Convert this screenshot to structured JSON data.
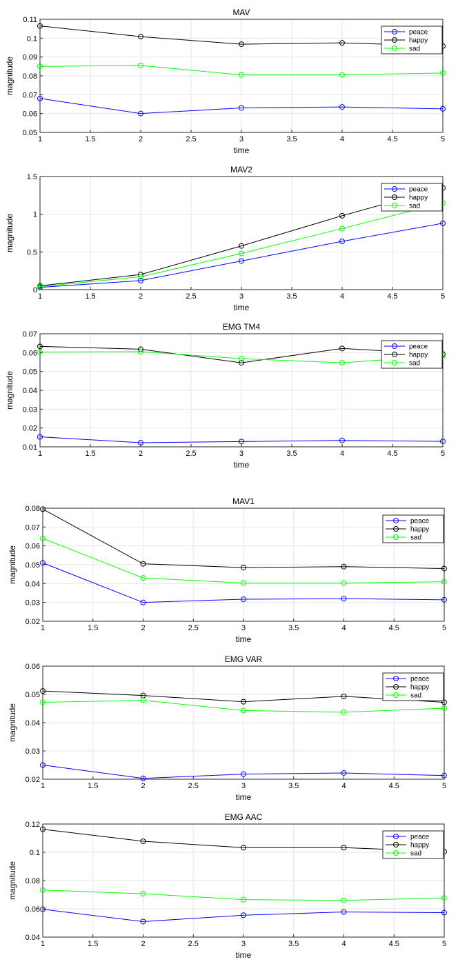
{
  "colors": {
    "peace": "#0000ff",
    "happy": "#000000",
    "sad": "#00ff00",
    "grid": "#e6e6e6",
    "axis": "#262626"
  },
  "chart_data": [
    {
      "type": "line",
      "title": "MAV",
      "xlabel": "time",
      "ylabel": "magnitude",
      "x": [
        1,
        2,
        3,
        4,
        5
      ],
      "xlim": [
        1,
        5
      ],
      "ylim": [
        0.05,
        0.11
      ],
      "xticks": [
        "1",
        "1.5",
        "2",
        "2.5",
        "3",
        "3.5",
        "4",
        "4.5",
        "5"
      ],
      "yticks": [
        "0.05",
        "0.06",
        "0.07",
        "0.08",
        "0.09",
        "0.1",
        "0.11"
      ],
      "grid": true,
      "legend": "top-right",
      "series": [
        {
          "name": "peace",
          "color": "#0000ff",
          "values": [
            0.068,
            0.06,
            0.063,
            0.0635,
            0.0625
          ]
        },
        {
          "name": "happy",
          "color": "#000000",
          "values": [
            0.1065,
            0.1008,
            0.0968,
            0.0975,
            0.0958
          ]
        },
        {
          "name": "sad",
          "color": "#00ff00",
          "values": [
            0.085,
            0.0855,
            0.0805,
            0.0805,
            0.0815
          ]
        }
      ]
    },
    {
      "type": "line",
      "title": "MAV2",
      "xlabel": "time",
      "ylabel": "magnitude",
      "x": [
        1,
        2,
        3,
        4,
        5
      ],
      "xlim": [
        1,
        5
      ],
      "ylim": [
        0,
        1.5
      ],
      "xticks": [
        "1",
        "1.5",
        "2",
        "2.5",
        "3",
        "3.5",
        "4",
        "4.5",
        "5"
      ],
      "yticks": [
        "0",
        "0.5",
        "1",
        "1.5"
      ],
      "grid": true,
      "legend": "top-right",
      "series": [
        {
          "name": "peace",
          "color": "#0000ff",
          "values": [
            0.03,
            0.12,
            0.38,
            0.64,
            0.88
          ]
        },
        {
          "name": "happy",
          "color": "#000000",
          "values": [
            0.05,
            0.2,
            0.58,
            0.98,
            1.35
          ]
        },
        {
          "name": "sad",
          "color": "#00ff00",
          "values": [
            0.04,
            0.17,
            0.48,
            0.81,
            1.15
          ]
        }
      ]
    },
    {
      "type": "line",
      "title": "EMG TM4",
      "xlabel": "time",
      "ylabel": "magnitude",
      "x": [
        1,
        2,
        3,
        4,
        5
      ],
      "xlim": [
        1,
        5
      ],
      "ylim": [
        0.01,
        0.07
      ],
      "xticks": [
        "1",
        "1.5",
        "2",
        "2.5",
        "3",
        "3.5",
        "4",
        "4.5",
        "5"
      ],
      "yticks": [
        "0.01",
        "0.02",
        "0.03",
        "0.04",
        "0.05",
        "0.06",
        "0.07"
      ],
      "grid": true,
      "legend": "top-right",
      "series": [
        {
          "name": "peace",
          "color": "#0000ff",
          "values": [
            0.0153,
            0.0122,
            0.0128,
            0.0134,
            0.0129
          ]
        },
        {
          "name": "happy",
          "color": "#000000",
          "values": [
            0.0633,
            0.0618,
            0.0546,
            0.0622,
            0.0592
          ]
        },
        {
          "name": "sad",
          "color": "#00ff00",
          "values": [
            0.0603,
            0.0605,
            0.0568,
            0.0546,
            0.0583
          ]
        }
      ]
    },
    {
      "type": "line",
      "title": "MAV1",
      "xlabel": "time",
      "ylabel": "magnitude",
      "x": [
        1,
        2,
        3,
        4,
        5
      ],
      "xlim": [
        1,
        5
      ],
      "ylim": [
        0.02,
        0.08
      ],
      "xticks": [
        "1",
        "1.5",
        "2",
        "2.5",
        "3",
        "3.5",
        "4",
        "4.5",
        "5"
      ],
      "yticks": [
        "0.02",
        "0.03",
        "0.04",
        "0.05",
        "0.06",
        "0.07",
        "0.08"
      ],
      "grid": true,
      "legend": "top-right",
      "series": [
        {
          "name": "peace",
          "color": "#0000ff",
          "values": [
            0.051,
            0.03,
            0.0317,
            0.032,
            0.0314
          ]
        },
        {
          "name": "happy",
          "color": "#000000",
          "values": [
            0.0795,
            0.0505,
            0.0485,
            0.049,
            0.048
          ]
        },
        {
          "name": "sad",
          "color": "#00ff00",
          "values": [
            0.064,
            0.043,
            0.0403,
            0.0403,
            0.041
          ]
        }
      ]
    },
    {
      "type": "line",
      "title": "EMG VAR",
      "xlabel": "time",
      "ylabel": "magnitude",
      "x": [
        1,
        2,
        3,
        4,
        5
      ],
      "xlim": [
        1,
        5
      ],
      "ylim": [
        0.02,
        0.06
      ],
      "xticks": [
        "1",
        "1.5",
        "2",
        "2.5",
        "3",
        "3.5",
        "4",
        "4.5",
        "5"
      ],
      "yticks": [
        "0.02",
        "0.03",
        "0.04",
        "0.05",
        "0.06"
      ],
      "grid": true,
      "legend": "top-right",
      "series": [
        {
          "name": "peace",
          "color": "#0000ff",
          "values": [
            0.025,
            0.0203,
            0.0218,
            0.0222,
            0.0213
          ]
        },
        {
          "name": "happy",
          "color": "#000000",
          "values": [
            0.0512,
            0.0496,
            0.0474,
            0.0493,
            0.0472
          ]
        },
        {
          "name": "sad",
          "color": "#00ff00",
          "values": [
            0.0472,
            0.0479,
            0.0443,
            0.0437,
            0.0451
          ]
        }
      ]
    },
    {
      "type": "line",
      "title": "EMG AAC",
      "xlabel": "time",
      "ylabel": "magnitude",
      "x": [
        1,
        2,
        3,
        4,
        5
      ],
      "xlim": [
        1,
        5
      ],
      "ylim": [
        0.04,
        0.12
      ],
      "xticks": [
        "1",
        "1.5",
        "2",
        "2.5",
        "3",
        "3.5",
        "4",
        "4.5",
        "5"
      ],
      "yticks": [
        "0.04",
        "0.06",
        "0.08",
        "0.1",
        "0.12"
      ],
      "grid": true,
      "legend": "top-right",
      "series": [
        {
          "name": "peace",
          "color": "#0000ff",
          "values": [
            0.0597,
            0.051,
            0.0555,
            0.0578,
            0.0573
          ]
        },
        {
          "name": "happy",
          "color": "#000000",
          "values": [
            0.1163,
            0.1078,
            0.1033,
            0.1033,
            0.1005
          ]
        },
        {
          "name": "sad",
          "color": "#00ff00",
          "values": [
            0.0733,
            0.0707,
            0.0665,
            0.066,
            0.0677
          ]
        }
      ]
    }
  ]
}
